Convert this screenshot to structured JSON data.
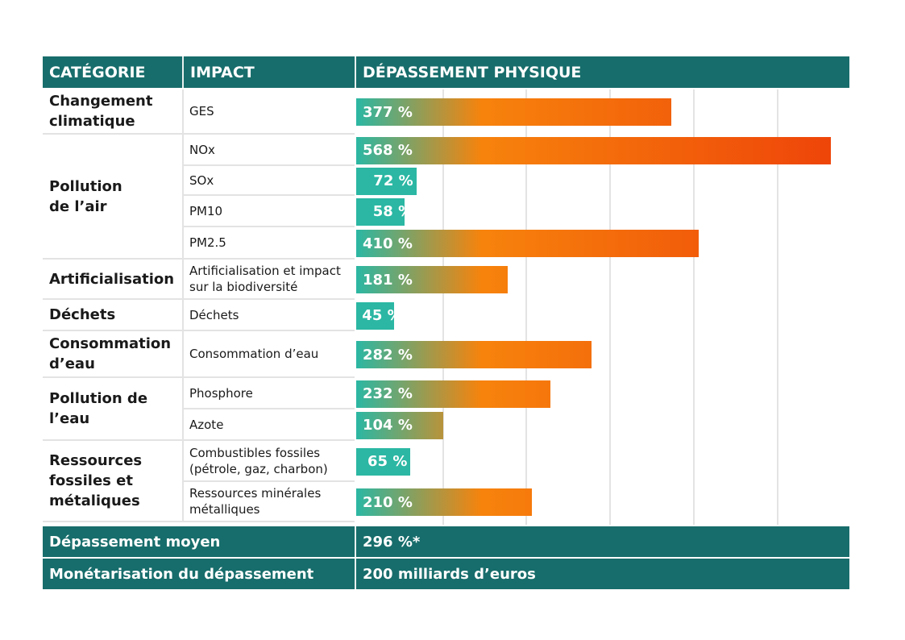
{
  "header": {
    "category": "CATÉGORIE",
    "impact": "IMPACT",
    "overshoot": "DÉPASSEMENT PHYSIQUE"
  },
  "colors": {
    "header_bg": "#176d6b",
    "bar_low": "#2bb7a3",
    "bar_mid": "#f7830c",
    "bar_high": "#ee4309"
  },
  "categories": [
    {
      "label": "Changement\nclimatique",
      "rows": 1
    },
    {
      "label": "Pollution\nde l’air",
      "rows": 4
    },
    {
      "label": "Artificialisation",
      "rows": 1
    },
    {
      "label": "Déchets",
      "rows": 1
    },
    {
      "label": "Consommation\nd’eau",
      "rows": 1
    },
    {
      "label": "Pollution de\nl’eau",
      "rows": 2
    },
    {
      "label": "Ressources\nfossiles et\nmétaliques",
      "rows": 2
    }
  ],
  "chart_data": {
    "type": "bar",
    "orientation": "horizontal",
    "categories": [
      "GES",
      "NOx",
      "SOx",
      "PM10",
      "PM2.5",
      "Artificialisation et impact\nsur la biodiversité",
      "Déchets",
      "Consommation d’eau",
      "Phosphore",
      "Azote",
      "Combustibles fossiles\n(pétrole, gaz, charbon)",
      "Ressources minérales\nmétalliques"
    ],
    "values": [
      377,
      568,
      72,
      58,
      410,
      181,
      45,
      282,
      232,
      104,
      65,
      210
    ],
    "labels": [
      "377 %",
      "568 %",
      "72 %",
      "58 %",
      "410 %",
      "181 %",
      "45 %",
      "282 %",
      "232 %",
      "104 %",
      "65 %",
      "210 %"
    ],
    "unit": "%",
    "xlim": [
      0,
      580
    ],
    "grid": true
  },
  "footer": [
    {
      "label": "Dépassement moyen",
      "value": "296 %*"
    },
    {
      "label": "Monétarisation du dépassement",
      "value": "200 milliards d’euros"
    }
  ]
}
